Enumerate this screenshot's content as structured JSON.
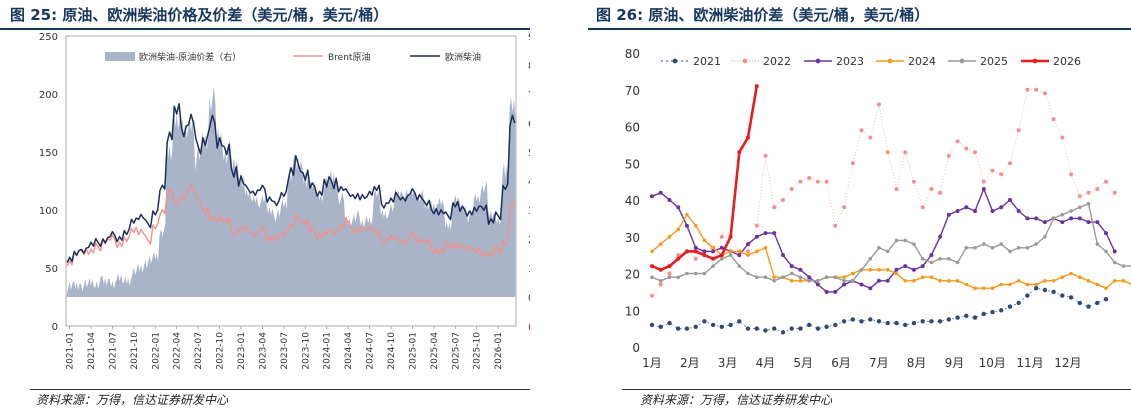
{
  "left": {
    "title": "图 25:  原油、欧洲柴油价格及价差（美元/桶，美元/桶）",
    "source": "资料来源：万得，信达证券研发中心"
  },
  "right": {
    "title": "图 26:  原油、欧洲柴油价差（美元/桶，美元/桶）",
    "source": "资料来源：万得，信达证券研发中心"
  },
  "colors": {
    "spread": "#a9b4c8",
    "brent": "#f4908a",
    "diesel": "#1c2e5a",
    "y2021": "#2e4a78",
    "y2022": "#f4908a",
    "y2023": "#6a34a0",
    "y2024": "#f59a1c",
    "y2025": "#9a9a9a",
    "y2026": "#e81c1c"
  },
  "chart_data": [
    {
      "type": "area+line",
      "title": "原油、欧洲柴油价格及价差（美元/桶，美元/桶）",
      "legend": [
        "欧洲柴油-原油价差（右）",
        "Brent原油",
        "欧洲柴油"
      ],
      "legend_position": "top",
      "y_left_ticks": [
        "250",
        "200",
        "150",
        "100",
        "50",
        "0"
      ],
      "y_left_range": [
        0,
        250
      ],
      "y_right_ticks": [
        "90",
        "80",
        "70",
        "60",
        "50",
        "40",
        "30",
        "20",
        "10",
        "0",
        "(10)"
      ],
      "y_right_range": [
        -10,
        90
      ],
      "x_ticks": [
        "2021-01",
        "2021-04",
        "2021-07",
        "2021-10",
        "2022-01",
        "2022-04",
        "2022-07",
        "2022-10",
        "2023-01",
        "2023-04",
        "2023-07",
        "2023-10",
        "2024-01",
        "2024-04",
        "2024-07",
        "2024-10",
        "2025-01",
        "2025-04",
        "2025-07",
        "2025-10",
        "2026-01"
      ],
      "months": [
        "2021-01",
        "2021-02",
        "2021-03",
        "2021-04",
        "2021-05",
        "2021-06",
        "2021-07",
        "2021-08",
        "2021-09",
        "2021-10",
        "2021-11",
        "2021-12",
        "2022-01",
        "2022-02",
        "2022-03",
        "2022-04",
        "2022-05",
        "2022-06",
        "2022-07",
        "2022-08",
        "2022-09",
        "2022-10",
        "2022-11",
        "2022-12",
        "2023-01",
        "2023-02",
        "2023-03",
        "2023-04",
        "2023-05",
        "2023-06",
        "2023-07",
        "2023-08",
        "2023-09",
        "2023-10",
        "2023-11",
        "2023-12",
        "2024-01",
        "2024-02",
        "2024-03",
        "2024-04",
        "2024-05",
        "2024-06",
        "2024-07",
        "2024-08",
        "2024-09",
        "2024-10",
        "2024-11",
        "2024-12",
        "2025-01",
        "2025-02",
        "2025-03",
        "2025-04",
        "2025-05",
        "2025-06",
        "2025-07",
        "2025-08",
        "2025-09",
        "2025-10",
        "2025-11",
        "2025-12",
        "2026-01",
        "2026-02",
        "2026-03"
      ],
      "series": [
        {
          "name": "欧洲柴油",
          "axis": "left",
          "values": [
            58,
            62,
            66,
            70,
            72,
            74,
            78,
            76,
            80,
            92,
            94,
            88,
            98,
            118,
            165,
            185,
            170,
            178,
            155,
            160,
            175,
            160,
            150,
            135,
            125,
            118,
            115,
            118,
            110,
            105,
            115,
            132,
            140,
            130,
            120,
            115,
            122,
            125,
            118,
            115,
            112,
            110,
            115,
            118,
            105,
            108,
            112,
            110,
            115,
            112,
            105,
            100,
            98,
            95,
            105,
            100,
            98,
            100,
            103,
            90,
            95,
            120,
            175
          ]
        },
        {
          "name": "Brent原油",
          "axis": "left",
          "values": [
            55,
            62,
            65,
            64,
            68,
            73,
            75,
            71,
            74,
            84,
            81,
            74,
            86,
            97,
            117,
            105,
            112,
            120,
            110,
            99,
            92,
            93,
            90,
            81,
            83,
            83,
            79,
            83,
            76,
            75,
            80,
            86,
            93,
            90,
            82,
            78,
            80,
            82,
            85,
            90,
            82,
            83,
            85,
            80,
            74,
            76,
            74,
            73,
            78,
            75,
            72,
            66,
            64,
            70,
            70,
            67,
            68,
            64,
            63,
            62,
            66,
            72,
            103
          ]
        },
        {
          "name": "欧洲柴油-原油价差",
          "axis": "right",
          "values": [
            3,
            4,
            4,
            5,
            5,
            5,
            5,
            6,
            6,
            8,
            10,
            12,
            14,
            23,
            49,
            62,
            57,
            60,
            48,
            54,
            68,
            55,
            50,
            45,
            42,
            35,
            34,
            33,
            30,
            28,
            32,
            44,
            45,
            42,
            38,
            35,
            39,
            41,
            34,
            26,
            28,
            25,
            27,
            35,
            29,
            30,
            36,
            35,
            36,
            35,
            31,
            32,
            32,
            25,
            33,
            31,
            28,
            34,
            38,
            28,
            27,
            42,
            67
          ]
        }
      ]
    },
    {
      "type": "line",
      "title": "原油、欧洲柴油价差（美元/桶，美元/桶）",
      "legend": [
        "2021",
        "2022",
        "2023",
        "2024",
        "2025",
        "2026"
      ],
      "legend_position": "top",
      "y_range": [
        0,
        80
      ],
      "y_ticks": [
        "0",
        "10",
        "20",
        "30",
        "40",
        "50",
        "60",
        "70",
        "80"
      ],
      "x_ticks": [
        "1月",
        "2月",
        "3月",
        "4月",
        "5月",
        "6月",
        "7月",
        "8月",
        "9月",
        "10月",
        "11月",
        "12月"
      ],
      "x_range_weeks": [
        1,
        53
      ],
      "series": [
        {
          "name": "2021",
          "values": [
            6,
            5.5,
            6.5,
            5,
            5,
            5.5,
            7,
            6,
            5.5,
            6,
            7,
            5,
            5,
            4.5,
            5,
            4,
            5,
            5,
            6,
            5,
            5.5,
            6,
            7,
            7.5,
            7,
            7.5,
            7,
            6.5,
            6.5,
            6,
            6.5,
            7,
            7,
            7,
            7.5,
            8,
            8.5,
            8,
            9,
            9.5,
            10,
            11,
            12,
            14,
            16,
            15.5,
            15,
            14,
            13.5,
            12,
            11,
            12,
            13
          ]
        },
        {
          "name": "2022",
          "values": [
            14,
            17,
            20,
            25,
            26,
            24,
            26,
            27,
            30,
            30,
            26,
            26,
            33,
            52,
            38,
            40,
            43,
            45,
            46,
            45,
            45,
            33,
            38,
            50,
            59,
            57,
            66,
            53,
            43,
            53,
            45,
            38,
            43,
            42,
            52,
            56,
            54,
            53,
            45,
            48,
            47,
            50,
            59,
            70,
            70,
            69,
            62,
            57,
            47,
            41,
            42,
            43,
            45,
            42
          ]
        },
        {
          "name": "2023",
          "values": [
            41,
            42,
            40,
            38,
            33,
            27,
            26,
            26,
            27,
            26,
            25,
            28,
            30,
            31,
            31,
            25,
            22,
            21,
            19,
            17,
            15,
            15,
            17,
            18,
            17,
            16,
            18,
            18,
            21,
            22,
            21,
            22,
            25,
            30,
            36,
            37,
            38,
            37,
            43,
            37,
            38,
            40,
            37,
            35,
            35,
            34,
            35,
            34,
            35,
            35,
            34,
            34,
            31,
            26
          ]
        },
        {
          "name": "2024",
          "values": [
            26,
            28,
            30,
            32,
            36,
            33,
            29,
            27,
            25,
            26,
            26,
            25,
            26,
            27,
            19,
            19,
            18,
            18,
            18,
            18,
            19,
            19,
            19,
            20,
            21,
            21,
            21,
            21,
            20,
            18,
            18,
            19,
            19,
            18,
            18,
            18,
            17,
            16,
            16,
            16,
            17,
            17,
            18,
            17,
            17,
            18,
            18,
            19,
            20,
            19,
            18,
            17,
            16,
            18,
            18,
            17
          ]
        },
        {
          "name": "2025",
          "values": [
            19,
            18,
            19,
            19,
            20,
            20,
            20,
            22,
            24,
            25,
            22,
            20,
            19,
            19,
            18,
            19,
            20,
            19,
            18,
            18,
            19,
            19,
            18,
            18,
            21,
            24,
            27,
            26,
            29,
            29,
            28,
            24,
            23,
            24,
            24,
            23,
            27,
            27,
            28,
            27,
            28,
            26,
            27,
            27,
            28,
            30,
            35,
            36,
            37,
            38,
            39,
            28,
            26,
            23,
            22,
            22
          ]
        },
        {
          "name": "2026",
          "values": [
            22,
            21,
            22,
            24,
            26,
            26,
            25,
            24,
            25,
            30,
            53,
            57,
            71
          ]
        }
      ]
    }
  ]
}
